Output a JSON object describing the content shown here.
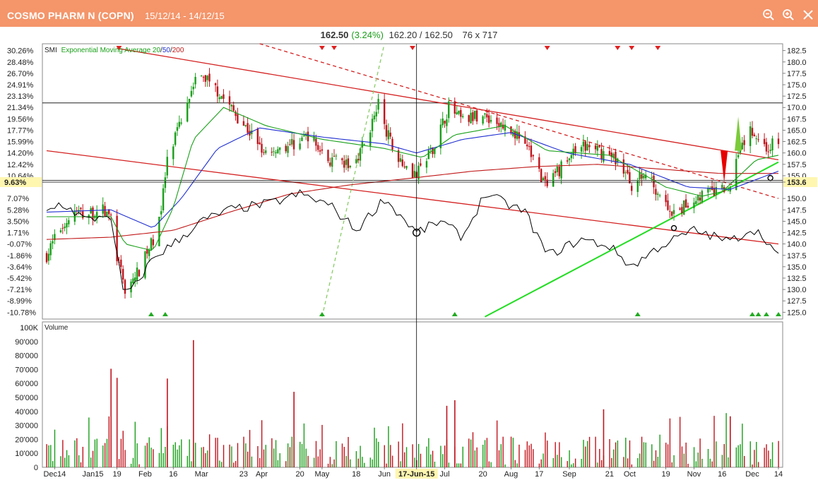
{
  "window": {
    "title": "COSMO PHARM N (COPN)",
    "date_range": "15/12/14 - 14/12/15",
    "buttons": [
      "zoom-out-icon",
      "zoom-in-icon",
      "close-icon"
    ]
  },
  "quote": {
    "last": "162.50",
    "change_pct": "(3.24%)",
    "bid_ask": "162.20 / 162.50",
    "sizes": "76 x 717"
  },
  "legend": {
    "prefix": "SMI",
    "ema_label": "Exponential Moving Average 20",
    "sep1": "/",
    "ema50": "50",
    "sep2": "/",
    "ema200": "200"
  },
  "colors": {
    "title_bar": "#f4956a",
    "up": "#1a9e1a",
    "down": "#c0141c",
    "ema20": "#1aa01a",
    "ema50": "#1f2fd0",
    "ema200": "#c01818",
    "smi": "#000000",
    "highlight_label": "#fff6b0"
  },
  "volume_panel": {
    "title": "Volume"
  },
  "crosshair": {
    "date_label": "17-Jun-15",
    "left_value": "9.63%",
    "right_value": "153.6"
  },
  "chart_data": {
    "type": "candlestick",
    "x_axis": {
      "range": [
        "2014-12-15",
        "2015-12-14"
      ],
      "tick_labels": [
        "Dec14",
        "Jan15",
        "19",
        "Feb",
        "16",
        "Mar",
        "23",
        "Apr",
        "20",
        "May",
        "18",
        "Jun",
        "17-Jun-15",
        "Jul",
        "20",
        "Aug",
        "17",
        "Sep",
        "21",
        "Oct",
        "19",
        "Nov",
        "16",
        "Dec",
        "14"
      ]
    },
    "price_axis": {
      "range": [
        123.5,
        184
      ],
      "tick_labels": [
        "182.5",
        "180.0",
        "177.5",
        "175.0",
        "172.5",
        "170.0",
        "167.5",
        "165.0",
        "162.5",
        "160.0",
        "157.5",
        "155.0",
        "153.6",
        "150.0",
        "147.5",
        "145.0",
        "142.5",
        "140.0",
        "137.5",
        "135.0",
        "132.5",
        "130.0",
        "127.5",
        "125.0"
      ]
    },
    "percent_axis": {
      "tick_labels": [
        "30.26%",
        "28.48%",
        "26.70%",
        "24.91%",
        "23.13%",
        "21.34%",
        "19.56%",
        "17.77%",
        "15.99%",
        "14.20%",
        "12.42%",
        "10.64%",
        "9.63%",
        "7.07%",
        "5.28%",
        "3.50%",
        "1.71%",
        "-0.07%",
        "-1.86%",
        "-3.64%",
        "-5.42%",
        "-7.21%",
        "-8.99%",
        "-10.78%"
      ]
    },
    "volume_axis": {
      "range": [
        0,
        100000
      ],
      "tick_labels": [
        "100K",
        "90'000",
        "80'000",
        "70'000",
        "60'000",
        "50'000",
        "40'000",
        "30'000",
        "20'000",
        "10'000",
        "0"
      ]
    },
    "close_path": [
      [
        "2014-12-15",
        137.5
      ],
      [
        "2014-12-22",
        143.5
      ],
      [
        "2014-12-29",
        147.0
      ],
      [
        "2015-01-05",
        146.5
      ],
      [
        "2015-01-12",
        147.5
      ],
      [
        "2015-01-16",
        145.5
      ],
      [
        "2015-01-19",
        137.0
      ],
      [
        "2015-01-23",
        130.0
      ],
      [
        "2015-01-30",
        134.0
      ],
      [
        "2015-02-06",
        141.0
      ],
      [
        "2015-02-10",
        148.0
      ],
      [
        "2015-02-13",
        158.0
      ],
      [
        "2015-02-20",
        167.0
      ],
      [
        "2015-02-26",
        176.0
      ],
      [
        "2015-03-05",
        176.5
      ],
      [
        "2015-03-13",
        172.0
      ],
      [
        "2015-03-20",
        168.0
      ],
      [
        "2015-03-27",
        164.0
      ],
      [
        "2015-04-03",
        160.5
      ],
      [
        "2015-04-17",
        162.0
      ],
      [
        "2015-04-24",
        164.0
      ],
      [
        "2015-05-04",
        158.5
      ],
      [
        "2015-05-15",
        157.0
      ],
      [
        "2015-05-22",
        162.0
      ],
      [
        "2015-05-29",
        170.5
      ],
      [
        "2015-06-05",
        161.0
      ],
      [
        "2015-06-17",
        155.0
      ],
      [
        "2015-06-26",
        162.0
      ],
      [
        "2015-07-03",
        170.0
      ],
      [
        "2015-07-10",
        167.0
      ],
      [
        "2015-07-20",
        168.5
      ],
      [
        "2015-07-31",
        165.5
      ],
      [
        "2015-08-10",
        162.5
      ],
      [
        "2015-08-21",
        152.0
      ],
      [
        "2015-08-28",
        157.0
      ],
      [
        "2015-09-07",
        161.5
      ],
      [
        "2015-09-18",
        160.0
      ],
      [
        "2015-09-25",
        158.5
      ],
      [
        "2015-10-02",
        153.0
      ],
      [
        "2015-10-09",
        155.5
      ],
      [
        "2015-10-16",
        151.0
      ],
      [
        "2015-10-23",
        146.0
      ],
      [
        "2015-10-30",
        149.0
      ],
      [
        "2015-11-06",
        151.0
      ],
      [
        "2015-11-13",
        151.5
      ],
      [
        "2015-11-20",
        152.5
      ],
      [
        "2015-11-24",
        161.0
      ],
      [
        "2015-12-01",
        165.0
      ],
      [
        "2015-12-08",
        161.0
      ],
      [
        "2015-12-14",
        162.5
      ]
    ],
    "ema20_path": [
      [
        "2014-12-15",
        146.0
      ],
      [
        "2015-01-16",
        146.0
      ],
      [
        "2015-01-23",
        140.0
      ],
      [
        "2015-02-06",
        138.5
      ],
      [
        "2015-02-16",
        148.0
      ],
      [
        "2015-02-26",
        163.0
      ],
      [
        "2015-03-13",
        170.0
      ],
      [
        "2015-04-03",
        166.0
      ],
      [
        "2015-05-01",
        163.0
      ],
      [
        "2015-06-01",
        161.0
      ],
      [
        "2015-06-20",
        159.0
      ],
      [
        "2015-07-06",
        164.0
      ],
      [
        "2015-07-31",
        166.0
      ],
      [
        "2015-08-21",
        160.5
      ],
      [
        "2015-09-21",
        159.5
      ],
      [
        "2015-10-19",
        152.5
      ],
      [
        "2015-11-06",
        150.5
      ],
      [
        "2015-11-16",
        151.5
      ],
      [
        "2015-12-03",
        158.5
      ],
      [
        "2015-12-14",
        159.5
      ]
    ],
    "ema50_path": [
      [
        "2014-12-15",
        147.0
      ],
      [
        "2015-01-16",
        147.5
      ],
      [
        "2015-02-06",
        143.5
      ],
      [
        "2015-02-20",
        150.0
      ],
      [
        "2015-03-10",
        161.0
      ],
      [
        "2015-03-31",
        165.5
      ],
      [
        "2015-05-01",
        163.5
      ],
      [
        "2015-06-01",
        162.0
      ],
      [
        "2015-06-17",
        160.0
      ],
      [
        "2015-07-10",
        163.0
      ],
      [
        "2015-08-03",
        164.5
      ],
      [
        "2015-08-31",
        160.0
      ],
      [
        "2015-10-01",
        157.5
      ],
      [
        "2015-10-30",
        152.5
      ],
      [
        "2015-11-20",
        152.0
      ],
      [
        "2015-12-14",
        156.0
      ]
    ],
    "ema200_path": [
      [
        "2014-12-15",
        141.0
      ],
      [
        "2015-01-16",
        141.5
      ],
      [
        "2015-02-16",
        143.0
      ],
      [
        "2015-03-16",
        147.0
      ],
      [
        "2015-04-15",
        151.0
      ],
      [
        "2015-05-15",
        153.0
      ],
      [
        "2015-06-15",
        154.5
      ],
      [
        "2015-07-15",
        156.0
      ],
      [
        "2015-08-15",
        157.0
      ],
      [
        "2015-09-15",
        157.5
      ],
      [
        "2015-10-15",
        156.5
      ],
      [
        "2015-11-15",
        155.5
      ],
      [
        "2015-12-14",
        155.5
      ]
    ],
    "smi_path": [
      [
        "2014-12-15",
        147.0
      ],
      [
        "2014-12-22",
        149.0
      ],
      [
        "2015-01-05",
        145.0
      ],
      [
        "2015-01-15",
        147.0
      ],
      [
        "2015-01-22",
        130.0
      ],
      [
        "2015-01-26",
        129.5
      ],
      [
        "2015-02-06",
        137.0
      ],
      [
        "2015-02-16",
        140.0
      ],
      [
        "2015-03-02",
        145.0
      ],
      [
        "2015-03-16",
        147.5
      ],
      [
        "2015-04-06",
        149.0
      ],
      [
        "2015-04-20",
        151.0
      ],
      [
        "2015-05-05",
        148.5
      ],
      [
        "2015-05-18",
        143.0
      ],
      [
        "2015-06-01",
        150.0
      ],
      [
        "2015-06-17",
        142.5
      ],
      [
        "2015-06-29",
        145.0
      ],
      [
        "2015-07-10",
        141.5
      ],
      [
        "2015-07-21",
        151.0
      ],
      [
        "2015-08-10",
        147.0
      ],
      [
        "2015-08-21",
        137.5
      ],
      [
        "2015-09-07",
        141.0
      ],
      [
        "2015-09-21",
        139.5
      ],
      [
        "2015-10-02",
        135.0
      ],
      [
        "2015-10-16",
        139.5
      ],
      [
        "2015-11-02",
        143.0
      ],
      [
        "2015-11-20",
        140.5
      ],
      [
        "2015-12-01",
        143.5
      ],
      [
        "2015-12-08",
        141.0
      ],
      [
        "2015-12-14",
        137.0
      ]
    ],
    "trend_lines": [
      {
        "type": "resistance",
        "style": "solid",
        "color": "#d42020",
        "from": [
          "2015-01-19",
          183.0
        ],
        "to": [
          "2015-12-14",
          158.5
        ]
      },
      {
        "type": "channel-low",
        "style": "solid",
        "color": "#d42020",
        "from": [
          "2014-12-15",
          160.5
        ],
        "to": [
          "2015-12-14",
          140.0
        ]
      },
      {
        "type": "resistance",
        "style": "dashed",
        "color": "#d42020",
        "from": [
          "2015-03-31",
          184.0
        ],
        "to": [
          "2015-12-14",
          150.0
        ]
      },
      {
        "type": "fan",
        "style": "dashed",
        "color": "#88cc66",
        "from": [
          "2015-05-01",
          124.0
        ],
        "to": [
          "2015-06-01",
          184.0
        ]
      },
      {
        "type": "support",
        "style": "solid",
        "color": "#22dd22",
        "from": [
          "2015-07-21",
          124.0
        ],
        "to": [
          "2015-12-14",
          158.0
        ]
      }
    ],
    "horizontal_lines": [
      171.0,
      154.0
    ],
    "annotations": [
      {
        "type": "arrow-down",
        "date": "2015-11-17",
        "color": "#e80000"
      },
      {
        "type": "arrow-up",
        "date": "2015-11-24",
        "color": "#7ccb3a"
      },
      {
        "type": "circle",
        "date": "2015-06-17",
        "value": 142.5
      },
      {
        "type": "circle",
        "date": "2015-10-23",
        "value": 143.5
      },
      {
        "type": "circle",
        "date": "2015-12-10",
        "value": 154.5
      }
    ],
    "signals": {
      "sell_dates": [
        "2015-01-20",
        "2015-05-01",
        "2015-05-07",
        "2015-06-15",
        "2015-08-21",
        "2015-09-25",
        "2015-10-02",
        "2015-10-15"
      ],
      "buy_dates": [
        "2015-02-05",
        "2015-02-12",
        "2015-05-01",
        "2015-07-06",
        "2015-10-05",
        "2015-12-01",
        "2015-12-04",
        "2015-12-08",
        "2015-12-14"
      ]
    },
    "volume_notable": [
      {
        "date": "2015-01-16",
        "value": 70500
      },
      {
        "date": "2015-01-19",
        "value": 64000
      },
      {
        "date": "2015-02-13",
        "value": 63500
      },
      {
        "date": "2015-02-26",
        "value": 91000
      },
      {
        "date": "2015-04-17",
        "value": 54000
      },
      {
        "date": "2015-07-06",
        "value": 48000
      },
      {
        "date": "2015-07-02",
        "value": 44000
      },
      {
        "date": "2015-09-18",
        "value": 41500
      },
      {
        "date": "2015-11-20",
        "value": 36500
      }
    ]
  }
}
